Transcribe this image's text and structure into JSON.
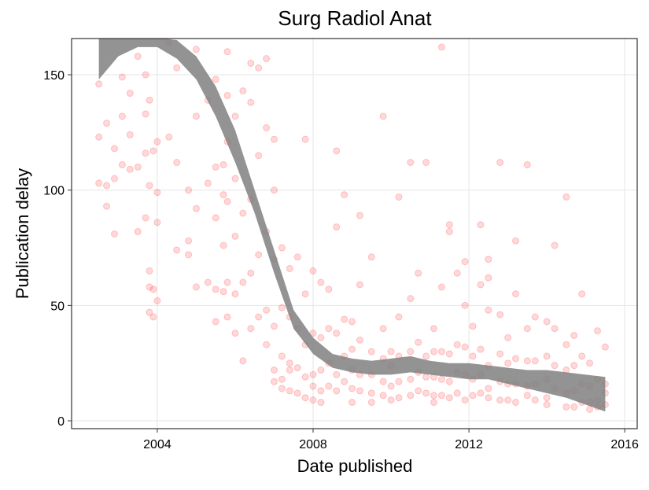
{
  "chart_data": {
    "type": "scatter",
    "title": "Surg Radiol Anat",
    "xlabel": "Date published",
    "ylabel": "Publication delay",
    "xlim": [
      2001.8,
      2016.32
    ],
    "ylim": [
      -3.4,
      165.7
    ],
    "xticks": [
      2004,
      2008,
      2012,
      2016
    ],
    "yticks": [
      0,
      50,
      100,
      150
    ],
    "grid": true,
    "color": "#ff0000",
    "x": [
      2002.5,
      2002.5,
      2002.5,
      2002.7,
      2002.7,
      2002.7,
      2002.9,
      2002.9,
      2002.9,
      2003.1,
      2003.1,
      2003.1,
      2003.3,
      2003.3,
      2003.3,
      2003.5,
      2003.5,
      2003.5,
      2003.7,
      2003.7,
      2003.7,
      2003.7,
      2003.8,
      2003.8,
      2003.8,
      2003.8,
      2003.8,
      2003.9,
      2003.9,
      2003.9,
      2004.0,
      2004.0,
      2004.0,
      2004.0,
      2004.3,
      2004.3,
      2004.5,
      2004.5,
      2004.5,
      2004.8,
      2004.8,
      2004.8,
      2005.0,
      2005.0,
      2005.0,
      2005.0,
      2005.3,
      2005.3,
      2005.3,
      2005.5,
      2005.5,
      2005.5,
      2005.5,
      2005.5,
      2005.7,
      2005.7,
      2005.7,
      2005.7,
      2005.8,
      2005.8,
      2005.8,
      2005.8,
      2005.8,
      2005.8,
      2006.0,
      2006.0,
      2006.0,
      2006.0,
      2006.0,
      2006.2,
      2006.2,
      2006.2,
      2006.2,
      2006.4,
      2006.4,
      2006.4,
      2006.4,
      2006.4,
      2006.6,
      2006.6,
      2006.6,
      2006.6,
      2006.8,
      2006.8,
      2006.8,
      2006.8,
      2006.8,
      2007.0,
      2007.0,
      2007.0,
      2007.0,
      2007.0,
      2007.0,
      2007.2,
      2007.2,
      2007.2,
      2007.2,
      2007.2,
      2007.4,
      2007.4,
      2007.4,
      2007.4,
      2007.4,
      2007.6,
      2007.6,
      2007.6,
      2007.6,
      2007.8,
      2007.8,
      2007.8,
      2007.8,
      2007.8,
      2008.0,
      2008.0,
      2008.0,
      2008.0,
      2008.0,
      2008.2,
      2008.2,
      2008.2,
      2008.2,
      2008.2,
      2008.4,
      2008.4,
      2008.4,
      2008.4,
      2008.6,
      2008.6,
      2008.6,
      2008.6,
      2008.6,
      2008.8,
      2008.8,
      2008.8,
      2008.8,
      2009.0,
      2009.0,
      2009.0,
      2009.0,
      2009.0,
      2009.2,
      2009.2,
      2009.2,
      2009.2,
      2009.2,
      2009.5,
      2009.5,
      2009.5,
      2009.5,
      2009.5,
      2009.8,
      2009.8,
      2009.8,
      2009.8,
      2009.8,
      2010.0,
      2010.0,
      2010.0,
      2010.0,
      2010.2,
      2010.2,
      2010.2,
      2010.2,
      2010.2,
      2010.5,
      2010.5,
      2010.5,
      2010.5,
      2010.5,
      2010.7,
      2010.7,
      2010.7,
      2010.7,
      2010.9,
      2010.9,
      2010.9,
      2010.9,
      2011.1,
      2011.1,
      2011.1,
      2011.1,
      2011.1,
      2011.3,
      2011.3,
      2011.3,
      2011.3,
      2011.3,
      2011.5,
      2011.5,
      2011.5,
      2011.5,
      2011.5,
      2011.7,
      2011.7,
      2011.7,
      2011.7,
      2011.9,
      2011.9,
      2011.9,
      2011.9,
      2011.9,
      2012.1,
      2012.1,
      2012.1,
      2012.1,
      2012.3,
      2012.3,
      2012.3,
      2012.3,
      2012.3,
      2012.5,
      2012.5,
      2012.5,
      2012.5,
      2012.5,
      2012.5,
      2012.8,
      2012.8,
      2012.8,
      2012.8,
      2012.8,
      2013.0,
      2013.0,
      2013.0,
      2013.0,
      2013.2,
      2013.2,
      2013.2,
      2013.2,
      2013.2,
      2013.5,
      2013.5,
      2013.5,
      2013.5,
      2013.5,
      2013.7,
      2013.7,
      2013.7,
      2013.7,
      2014.0,
      2014.0,
      2014.0,
      2014.0,
      2014.0,
      2014.2,
      2014.2,
      2014.2,
      2014.2,
      2014.5,
      2014.5,
      2014.5,
      2014.5,
      2014.5,
      2014.7,
      2014.7,
      2014.7,
      2014.7,
      2014.9,
      2014.9,
      2014.9,
      2014.9,
      2015.1,
      2015.1,
      2015.1,
      2015.1,
      2015.3,
      2015.3,
      2015.3,
      2015.3,
      2015.5,
      2015.5,
      2015.5,
      2015.5
    ],
    "values": [
      146,
      103,
      123,
      129,
      102,
      93,
      118,
      105,
      81,
      149,
      132,
      111,
      142,
      124,
      109,
      158,
      110,
      82,
      150,
      133,
      116,
      88,
      139,
      102,
      65,
      58,
      47,
      117,
      57,
      45,
      121,
      86,
      52,
      99,
      164,
      123,
      153,
      112,
      74,
      100,
      78,
      72,
      161,
      132,
      92,
      58,
      139,
      103,
      60,
      148,
      110,
      88,
      57,
      43,
      111,
      98,
      76,
      56,
      160,
      141,
      121,
      95,
      60,
      45,
      132,
      105,
      80,
      55,
      38,
      143,
      90,
      60,
      26,
      155,
      138,
      96,
      64,
      40,
      153,
      115,
      72,
      45,
      157,
      127,
      82,
      48,
      33,
      122,
      100,
      70,
      41,
      22,
      17,
      75,
      49,
      28,
      18,
      14,
      66,
      45,
      25,
      13,
      22,
      71,
      40,
      23,
      12,
      122,
      55,
      33,
      19,
      10,
      65,
      38,
      20,
      15,
      9,
      60,
      36,
      22,
      13,
      8,
      57,
      40,
      25,
      15,
      117,
      84,
      38,
      20,
      13,
      98,
      44,
      28,
      17,
      43,
      31,
      22,
      14,
      8,
      89,
      59,
      35,
      20,
      13,
      71,
      30,
      20,
      12,
      8,
      132,
      40,
      27,
      17,
      11,
      30,
      24,
      15,
      9,
      97,
      45,
      28,
      17,
      10,
      112,
      53,
      30,
      18,
      11,
      64,
      34,
      21,
      13,
      112,
      28,
      19,
      12,
      40,
      30,
      19,
      11,
      8,
      162,
      58,
      30,
      18,
      11,
      85,
      82,
      29,
      17,
      10,
      64,
      33,
      21,
      12,
      69,
      50,
      32,
      20,
      9,
      41,
      28,
      18,
      11,
      85,
      59,
      31,
      20,
      12,
      70,
      62,
      48,
      24,
      14,
      10,
      112,
      46,
      29,
      17,
      9,
      36,
      25,
      16,
      9,
      78,
      55,
      27,
      16,
      8,
      111,
      40,
      26,
      15,
      11,
      45,
      26,
      16,
      9,
      43,
      28,
      18,
      10,
      7,
      76,
      40,
      24,
      14,
      97,
      33,
      22,
      12,
      6,
      37,
      24,
      13,
      6,
      55,
      28,
      16,
      8,
      25,
      15,
      8,
      5,
      39,
      18,
      9,
      6,
      32,
      16,
      12,
      7
    ],
    "band": {
      "color": "#808080",
      "x": [
        2002.5,
        2003,
        2003.5,
        2004,
        2004.5,
        2005,
        2005.5,
        2006,
        2006.5,
        2007,
        2007.5,
        2008,
        2008.5,
        2009,
        2009.5,
        2010,
        2010.5,
        2011,
        2011.5,
        2012,
        2012.5,
        2013,
        2013.5,
        2014,
        2014.5,
        2015,
        2015.5
      ],
      "lower": [
        148,
        158,
        162,
        162,
        157,
        148,
        132,
        112,
        90,
        64,
        40,
        29,
        23,
        21,
        20,
        20,
        21,
        20,
        19,
        18,
        18,
        16,
        14,
        12,
        10,
        7,
        4
      ],
      "upper": [
        178,
        178,
        170,
        166,
        165,
        158,
        145,
        126,
        100,
        74,
        48,
        36,
        29,
        27,
        26,
        27,
        28,
        26,
        25,
        25,
        24,
        23,
        22,
        22,
        21,
        20,
        19
      ]
    }
  }
}
